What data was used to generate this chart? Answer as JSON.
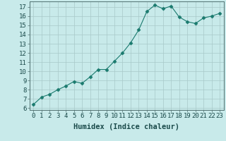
{
  "x": [
    0,
    1,
    2,
    3,
    4,
    5,
    6,
    7,
    8,
    9,
    10,
    11,
    12,
    13,
    14,
    15,
    16,
    17,
    18,
    19,
    20,
    21,
    22,
    23
  ],
  "y": [
    6.4,
    7.2,
    7.5,
    8.0,
    8.4,
    8.9,
    8.7,
    9.4,
    10.2,
    10.2,
    11.1,
    12.0,
    13.1,
    14.5,
    16.5,
    17.2,
    16.8,
    17.1,
    15.9,
    15.4,
    15.2,
    15.8,
    16.0,
    16.3
  ],
  "line_color": "#1a7a6e",
  "marker": "D",
  "marker_size": 2.5,
  "background_color": "#c8eaea",
  "grid_color": "#a8c8c8",
  "xlabel": "Humidex (Indice chaleur)",
  "xlim": [
    -0.5,
    23.5
  ],
  "ylim": [
    5.8,
    17.6
  ],
  "yticks": [
    6,
    7,
    8,
    9,
    10,
    11,
    12,
    13,
    14,
    15,
    16,
    17
  ],
  "xticks": [
    0,
    1,
    2,
    3,
    4,
    5,
    6,
    7,
    8,
    9,
    10,
    11,
    12,
    13,
    14,
    15,
    16,
    17,
    18,
    19,
    20,
    21,
    22,
    23
  ],
  "tick_label_fontsize": 6.5,
  "xlabel_fontsize": 7.5
}
